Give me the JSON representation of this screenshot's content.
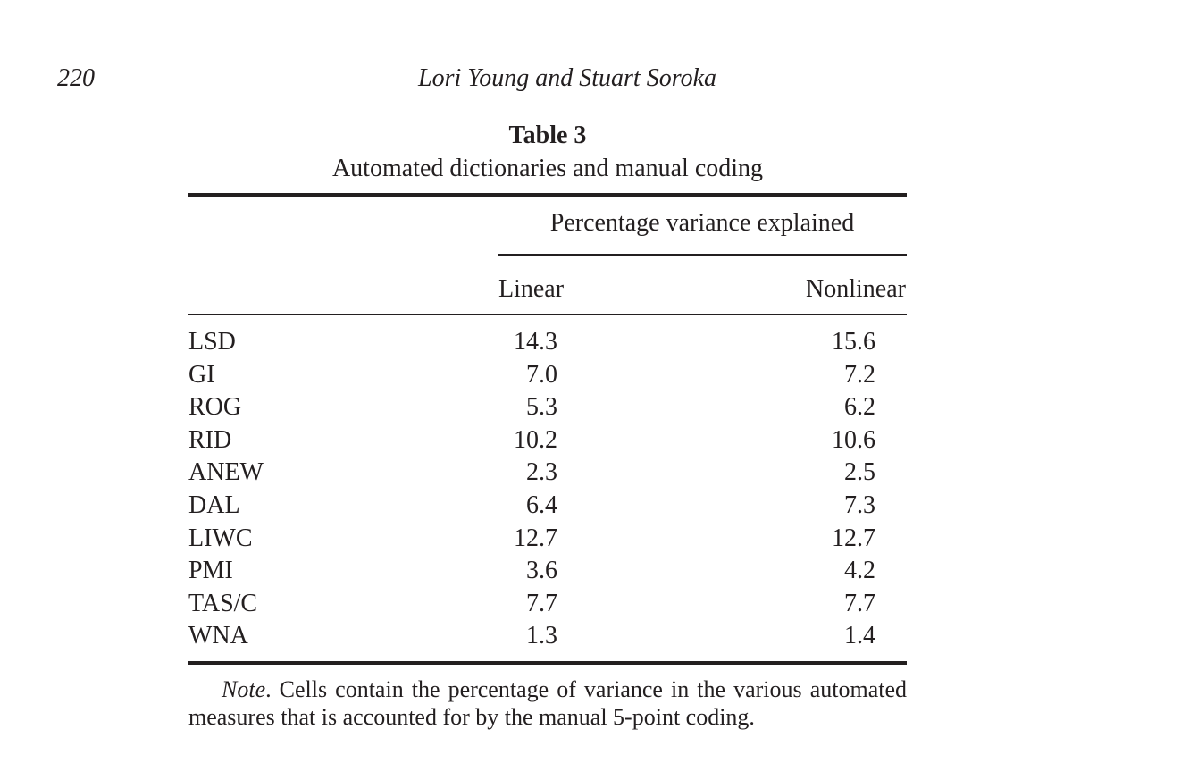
{
  "header": {
    "page_number": "220",
    "running_head": "Lori Young and Stuart Soroka"
  },
  "table": {
    "title": "Table 3",
    "caption": "Automated dictionaries and manual coding",
    "spanner": "Percentage variance explained",
    "columns": [
      "",
      "Linear",
      "Nonlinear"
    ],
    "rows": [
      {
        "label": "LSD",
        "linear": "14.3",
        "nonlinear": "15.6"
      },
      {
        "label": "GI",
        "linear": "7.0",
        "nonlinear": "7.2"
      },
      {
        "label": "ROG",
        "linear": "5.3",
        "nonlinear": "6.2"
      },
      {
        "label": "RID",
        "linear": "10.2",
        "nonlinear": "10.6"
      },
      {
        "label": "ANEW",
        "linear": "2.3",
        "nonlinear": "2.5"
      },
      {
        "label": "DAL",
        "linear": "6.4",
        "nonlinear": "7.3"
      },
      {
        "label": "LIWC",
        "linear": "12.7",
        "nonlinear": "12.7"
      },
      {
        "label": "PMI",
        "linear": "3.6",
        "nonlinear": "4.2"
      },
      {
        "label": "TAS/C",
        "linear": "7.7",
        "nonlinear": "7.7"
      },
      {
        "label": "WNA",
        "linear": "1.3",
        "nonlinear": "1.4"
      }
    ]
  },
  "note": {
    "label": "Note",
    "text": ". Cells contain the percentage of variance in the various automated measures that is accounted for by the manual 5-point coding."
  }
}
